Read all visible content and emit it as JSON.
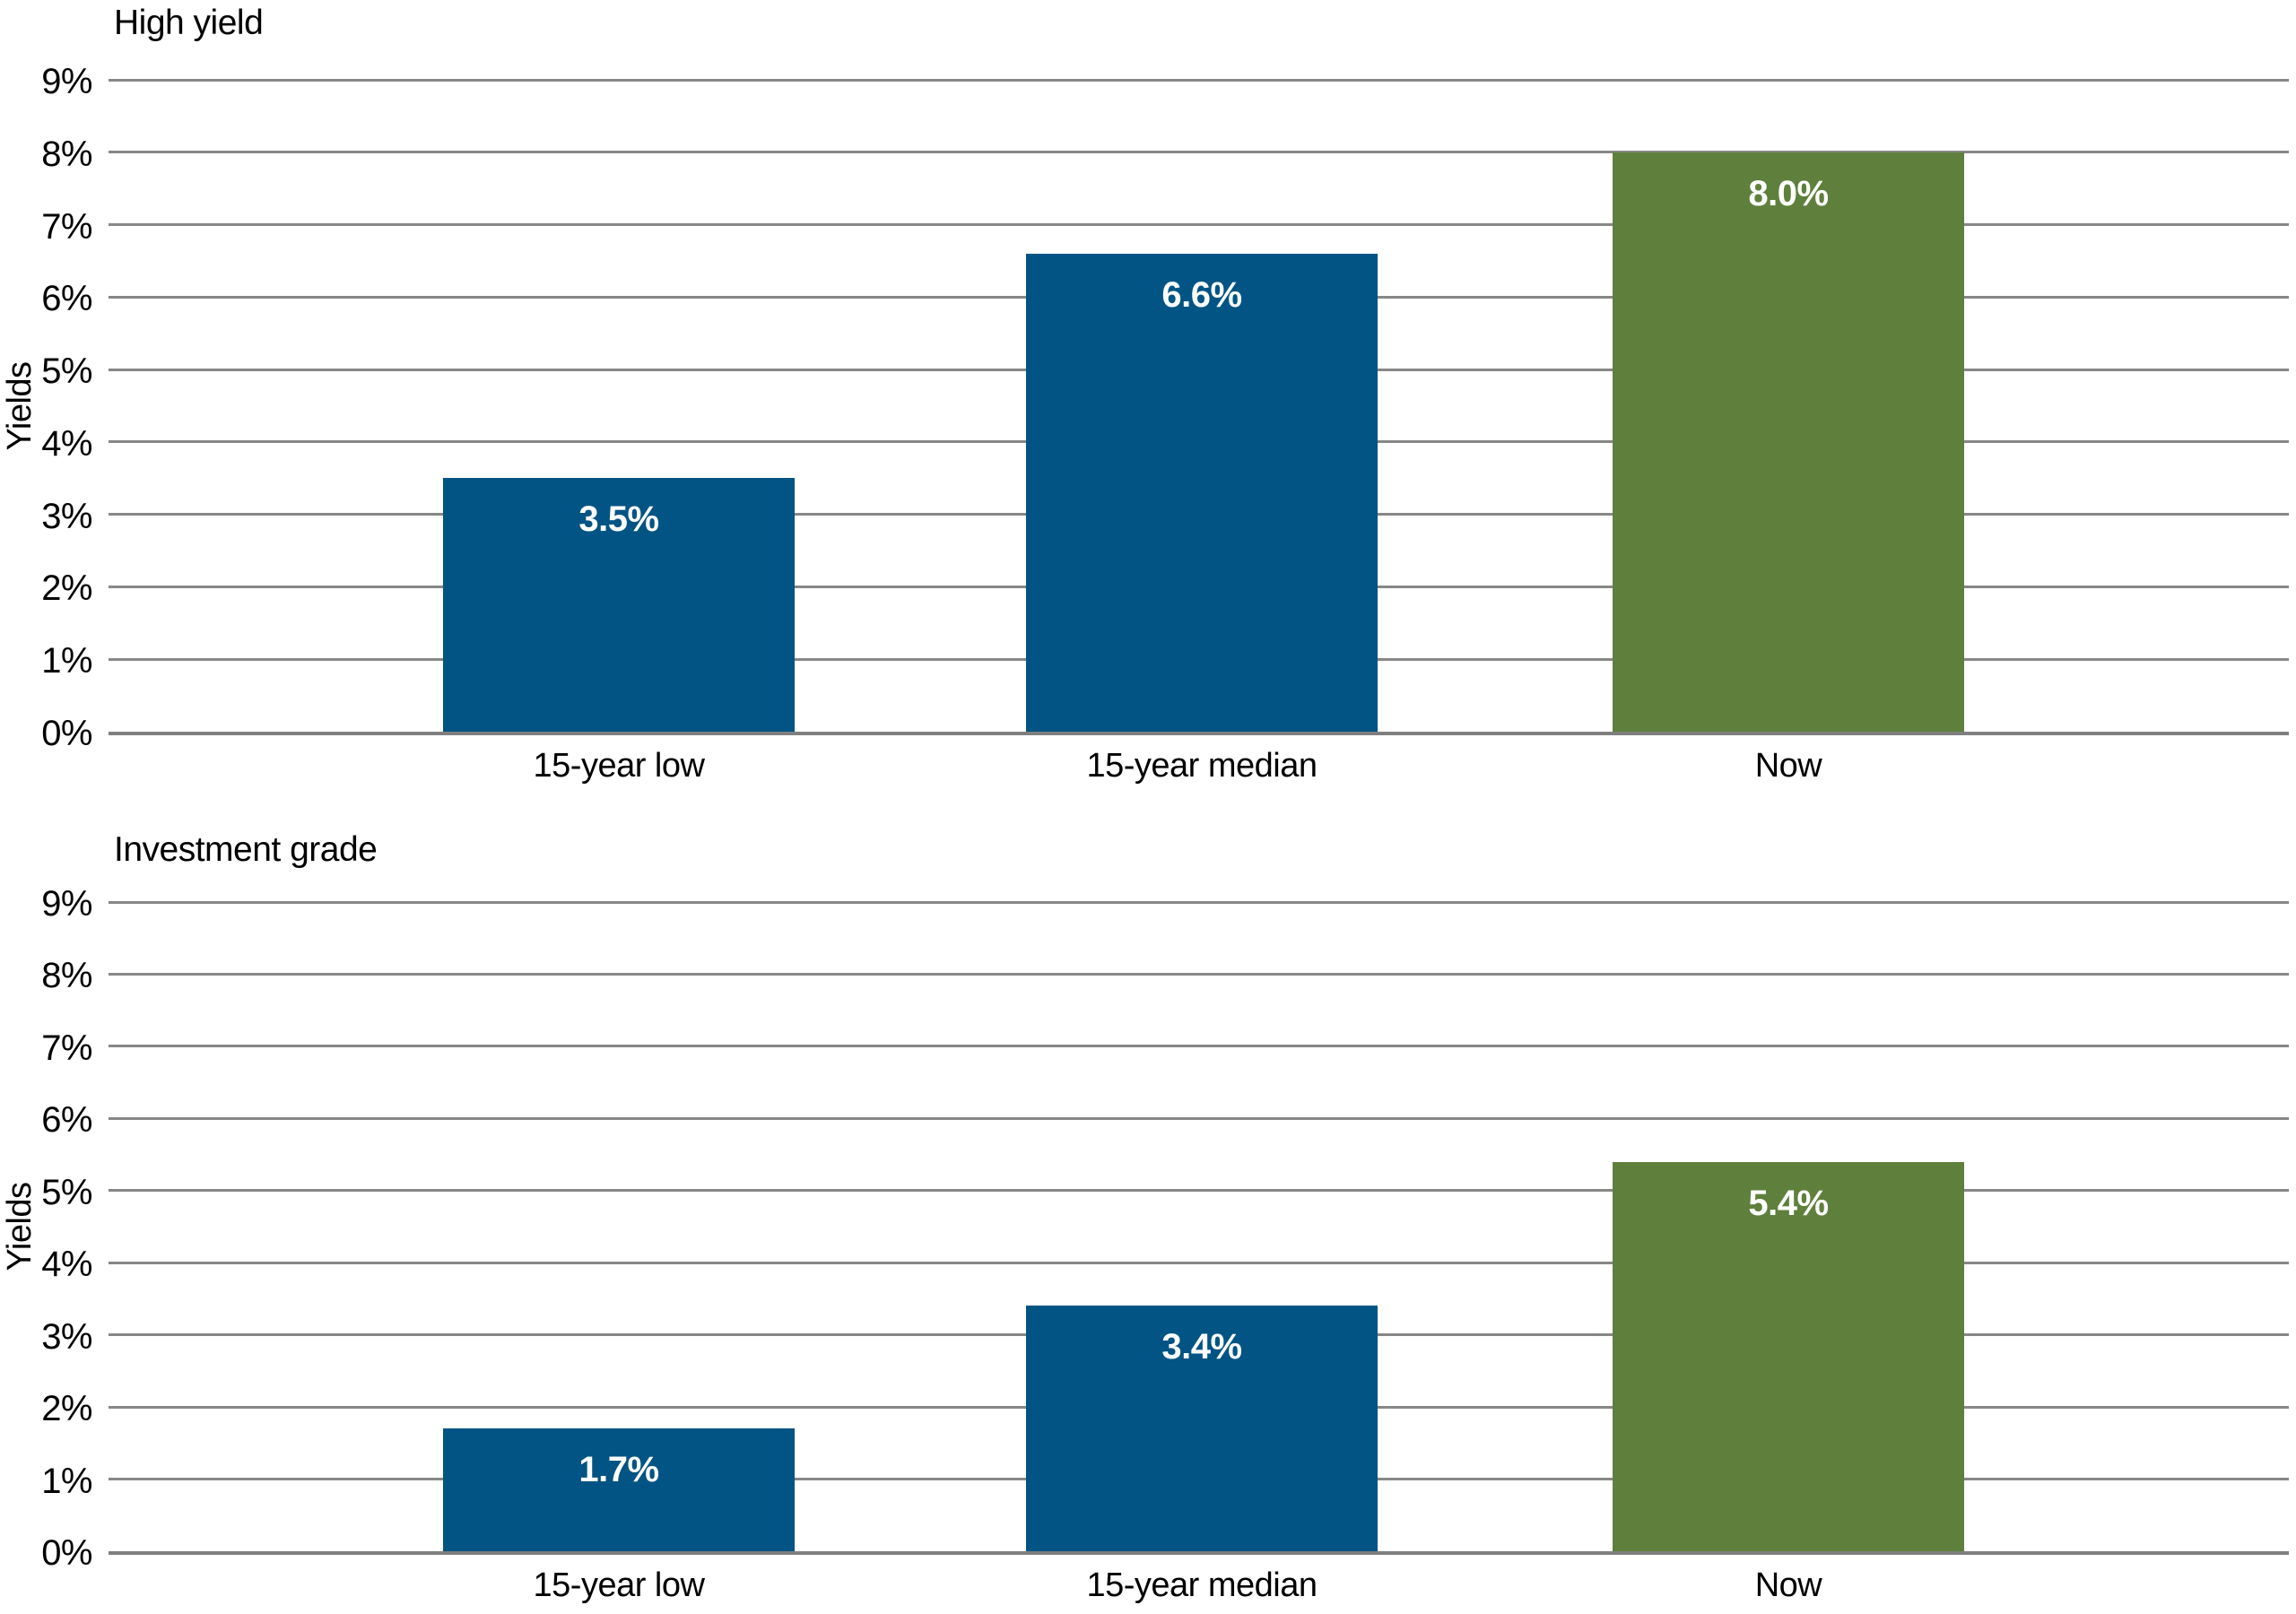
{
  "page": {
    "background": "#ffffff"
  },
  "colors": {
    "bar_blue": "#015483",
    "bar_green": "#5f803c",
    "gridline": "#878787",
    "axis_line": "#7f7f7f",
    "axis_text": "#000000",
    "value_label_text": "#ffffff"
  },
  "chart_data": [
    {
      "type": "bar",
      "title": "High yield",
      "ylabel": "Yields",
      "xlabel": "",
      "categories": [
        "15-year low",
        "15-year median",
        "Now"
      ],
      "values": [
        3.5,
        6.6,
        8.0
      ],
      "data_labels": [
        "3.5%",
        "6.6%",
        "8.0%"
      ],
      "bar_colors": [
        "#015483",
        "#015483",
        "#5f803c"
      ],
      "ylim": [
        0,
        9
      ],
      "yticks": [
        0,
        1,
        2,
        3,
        4,
        5,
        6,
        7,
        8,
        9
      ],
      "ytick_labels": [
        "0%",
        "1%",
        "2%",
        "3%",
        "4%",
        "5%",
        "6%",
        "7%",
        "8%",
        "9%"
      ],
      "grid": true,
      "legend": "none"
    },
    {
      "type": "bar",
      "title": "Investment grade",
      "ylabel": "Yields",
      "xlabel": "",
      "categories": [
        "15-year low",
        "15-year median",
        "Now"
      ],
      "values": [
        1.7,
        3.4,
        5.4
      ],
      "data_labels": [
        "1.7%",
        "3.4%",
        "5.4%"
      ],
      "bar_colors": [
        "#015483",
        "#015483",
        "#5f803c"
      ],
      "ylim": [
        0,
        9
      ],
      "yticks": [
        0,
        1,
        2,
        3,
        4,
        5,
        6,
        7,
        8,
        9
      ],
      "ytick_labels": [
        "0%",
        "1%",
        "2%",
        "3%",
        "4%",
        "5%",
        "6%",
        "7%",
        "8%",
        "9%"
      ],
      "grid": true,
      "legend": "none"
    }
  ]
}
